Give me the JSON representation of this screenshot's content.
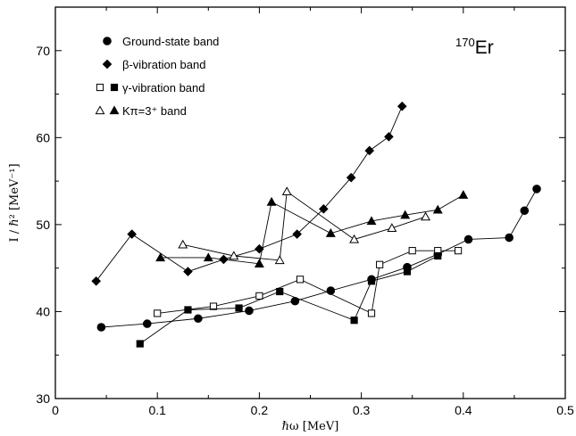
{
  "chart_data": {
    "type": "line",
    "xlabel": "ℏω [MeV]",
    "ylabel": "I / ℏ² [MeV⁻¹]",
    "xlim": [
      0,
      0.5
    ],
    "ylim": [
      30,
      75
    ],
    "xticks": [
      "0",
      "0.1",
      "0.2",
      "0.3",
      "0.4",
      "0.5"
    ],
    "yticks": [
      "30",
      "40",
      "50",
      "60",
      "70"
    ],
    "annotation": {
      "mass": "170",
      "element": "Er"
    },
    "legend_position": "top-left",
    "series": [
      {
        "name": "Ground-state band",
        "marker": "filled-circle",
        "x": [
          0.045,
          0.09,
          0.14,
          0.19,
          0.235,
          0.27,
          0.31,
          0.345,
          0.375,
          0.405,
          0.445,
          0.46,
          0.472
        ],
        "y": [
          38.2,
          38.6,
          39.2,
          40.1,
          41.2,
          42.4,
          43.7,
          45.1,
          46.6,
          48.3,
          48.5,
          51.6,
          54.1
        ]
      },
      {
        "name": "β-vibration band",
        "marker": "filled-diamond",
        "x": [
          0.04,
          0.075,
          0.13,
          0.165,
          0.2,
          0.237,
          0.263,
          0.29,
          0.308,
          0.327,
          0.34
        ],
        "y": [
          43.5,
          48.9,
          44.6,
          46.0,
          47.2,
          48.9,
          51.8,
          55.4,
          58.5,
          60.1,
          63.6
        ]
      },
      {
        "name": "γ-vibration band (open)",
        "marker": "open-square",
        "x": [
          0.1,
          0.155,
          0.2,
          0.24,
          0.31,
          0.318,
          0.35,
          0.375,
          0.395
        ],
        "y": [
          39.8,
          40.6,
          41.8,
          43.7,
          39.8,
          45.4,
          47.0,
          47.0,
          47.0
        ]
      },
      {
        "name": "γ-vibration band (filled)",
        "marker": "filled-square",
        "x": [
          0.083,
          0.13,
          0.18,
          0.22,
          0.293,
          0.31,
          0.345,
          0.375
        ],
        "y": [
          36.3,
          40.2,
          40.4,
          42.3,
          39.0,
          43.5,
          44.6,
          46.4
        ]
      },
      {
        "name": "Kπ=3⁺ band (open)",
        "marker": "open-triangle",
        "x": [
          0.125,
          0.175,
          0.22,
          0.227,
          0.293,
          0.33,
          0.363
        ],
        "y": [
          47.7,
          46.4,
          45.9,
          53.8,
          48.3,
          49.6,
          50.9
        ]
      },
      {
        "name": "Kπ=3⁺ band (filled)",
        "marker": "filled-triangle",
        "x": [
          0.103,
          0.15,
          0.2,
          0.212,
          0.27,
          0.31,
          0.343,
          0.375,
          0.4
        ],
        "y": [
          46.2,
          46.2,
          45.5,
          52.6,
          49.0,
          50.4,
          51.1,
          51.7,
          53.4
        ]
      }
    ],
    "legend": [
      {
        "label": "Ground-state band",
        "markers": [
          "filled-circle"
        ]
      },
      {
        "label": "β-vibration band",
        "markers": [
          "filled-diamond"
        ]
      },
      {
        "label": "γ-vibration band",
        "markers": [
          "open-square",
          "filled-square"
        ]
      },
      {
        "label": "Kπ=3⁺ band",
        "markers": [
          "open-triangle",
          "filled-triangle"
        ]
      }
    ]
  }
}
